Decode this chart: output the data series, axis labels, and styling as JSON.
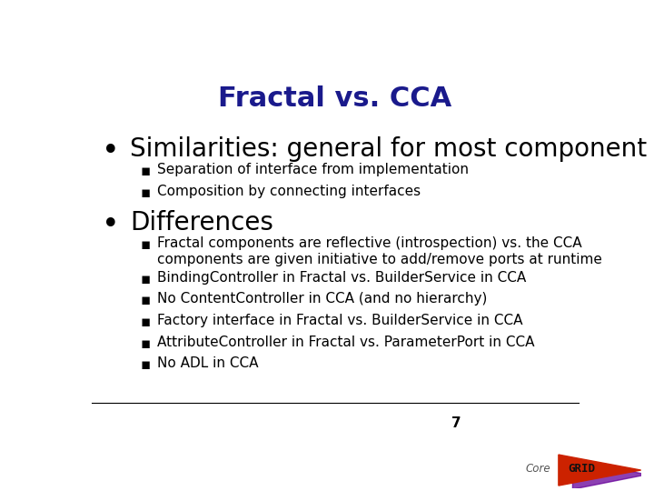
{
  "title": "Fractal vs. CCA",
  "title_color": "#1a1a8c",
  "title_fontsize": 22,
  "bg_color": "#ffffff",
  "bullet1_text": "Similarities: general for most component models",
  "bullet1_fontsize": 20,
  "sub1": [
    "Separation of interface from implementation",
    "Composition by connecting interfaces"
  ],
  "bullet2_text": "Differences",
  "bullet2_fontsize": 20,
  "sub2": [
    "Fractal components are reflective (introspection) vs. the CCA\ncomponents are given initiative to add/remove ports at runtime",
    "BindingController in Fractal vs. BuilderService in CCA",
    "No ContentController in CCA (and no hierarchy)",
    "Factory interface in Fractal vs. BuilderService in CCA",
    "AttributeController in Fractal vs. ParameterPort in CCA",
    "No ADL in CCA"
  ],
  "sub_fontsize": 11,
  "page_num": "7",
  "text_color": "#000000",
  "footer_line_color": "#000000"
}
